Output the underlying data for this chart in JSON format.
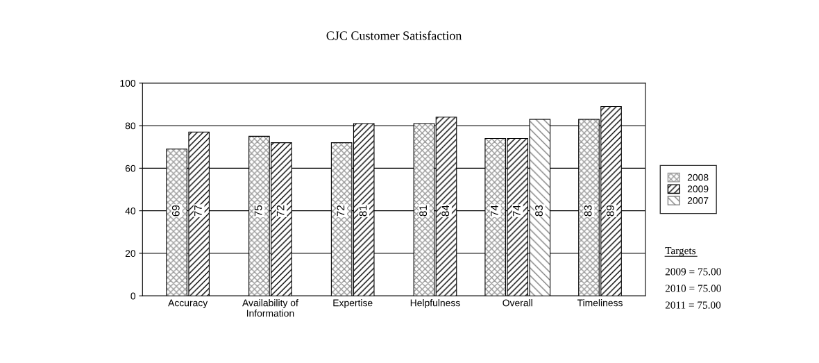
{
  "chart_data": {
    "type": "bar",
    "title": "CJC Customer Satisfaction",
    "categories": [
      "Accuracy",
      "Availability of\nInformation",
      "Expertise",
      "Helpfulness",
      "Overall",
      "Timeliness"
    ],
    "series": [
      {
        "name": "2008",
        "color": "#999999",
        "values": [
          69,
          75,
          72,
          81,
          74,
          83
        ]
      },
      {
        "name": "2009",
        "color": "#000000",
        "values": [
          77,
          72,
          81,
          84,
          74,
          89
        ]
      },
      {
        "name": "2007",
        "color": "#808080",
        "values": [
          null,
          null,
          null,
          null,
          83,
          null
        ]
      }
    ],
    "ylim": [
      0,
      100
    ],
    "yticks": [
      0,
      20,
      40,
      60,
      80,
      100
    ],
    "grid": "y",
    "legend": "right",
    "data_labels": true,
    "annotations": [
      "Targets",
      "2009 = 75.00",
      "2010 = 75.00",
      "2011 = 75.00"
    ]
  }
}
